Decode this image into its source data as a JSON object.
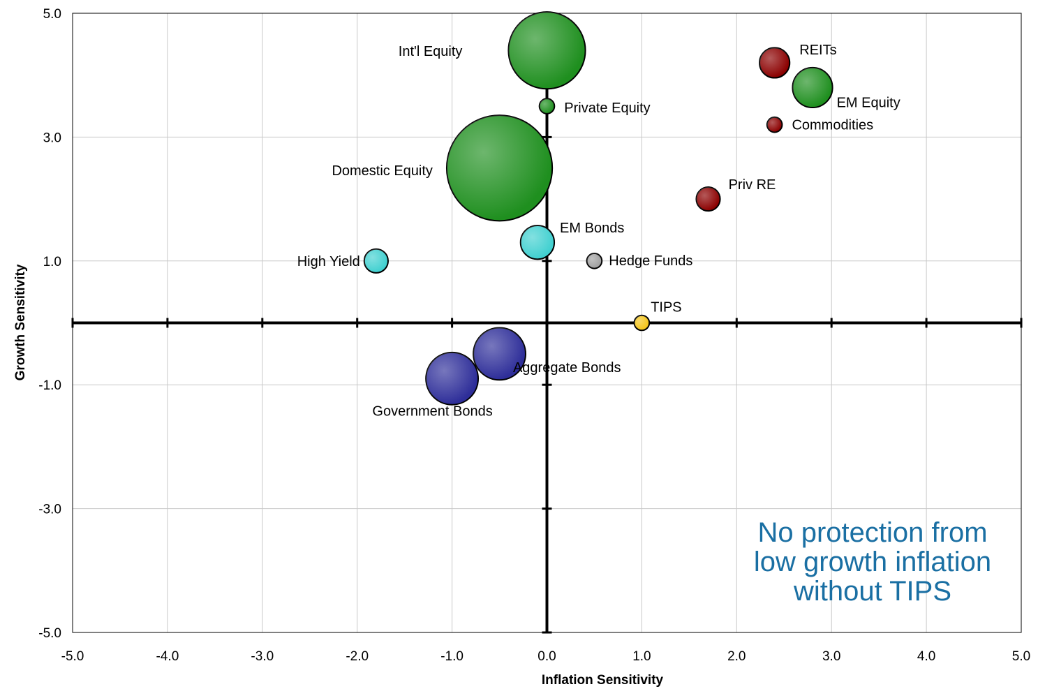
{
  "chart_data": {
    "type": "scatter",
    "subtype": "bubble",
    "title": "",
    "xlabel": "Inflation Sensitivity",
    "ylabel": "Growth Sensitivity",
    "xlim": [
      -5.0,
      5.0
    ],
    "ylim": [
      -5.0,
      5.0
    ],
    "x_ticks": [
      "-5.0",
      "-4.0",
      "-3.0",
      "-2.0",
      "-1.0",
      "0.0",
      "1.0",
      "2.0",
      "3.0",
      "4.0",
      "5.0"
    ],
    "y_ticks": [
      "5.0",
      "3.0",
      "1.0",
      "-1.0",
      "-3.0",
      "-5.0"
    ],
    "grid": true,
    "points": [
      {
        "label": "Int'l Equity",
        "x": 0.0,
        "y": 4.4,
        "size": 26,
        "color": "#1f8f1f"
      },
      {
        "label": "Private Equity",
        "x": 0.0,
        "y": 3.5,
        "size": 1,
        "color": "#1f8f1f"
      },
      {
        "label": "REITs",
        "x": 2.4,
        "y": 4.2,
        "size": 4,
        "color": "#8b0000"
      },
      {
        "label": "EM Equity",
        "x": 2.8,
        "y": 3.8,
        "size": 7,
        "color": "#1f8f1f"
      },
      {
        "label": "Commodities",
        "x": 2.4,
        "y": 3.2,
        "size": 1,
        "color": "#8b0000"
      },
      {
        "label": "Domestic Equity",
        "x": -0.5,
        "y": 2.5,
        "size": 49,
        "color": "#1f8f1f"
      },
      {
        "label": "Priv RE",
        "x": 1.7,
        "y": 2.0,
        "size": 2.5,
        "color": "#8b0000"
      },
      {
        "label": "EM Bonds",
        "x": -0.1,
        "y": 1.3,
        "size": 5,
        "color": "#40d0d0"
      },
      {
        "label": "High Yield",
        "x": -1.8,
        "y": 1.0,
        "size": 2.5,
        "color": "#40d0d0"
      },
      {
        "label": "Hedge Funds",
        "x": 0.5,
        "y": 1.0,
        "size": 1,
        "color": "#a0a0a0"
      },
      {
        "label": "TIPS",
        "x": 1.0,
        "y": 0.0,
        "size": 1,
        "color": "#f5c518"
      },
      {
        "label": "Aggregate Bonds",
        "x": -0.5,
        "y": -0.5,
        "size": 12,
        "color": "#2e2e99"
      },
      {
        "label": "Government Bonds",
        "x": -1.0,
        "y": -0.9,
        "size": 12,
        "color": "#2e2e99"
      }
    ]
  },
  "annotation": {
    "lines": [
      "No protection from",
      "low growth inflation",
      "without TIPS"
    ],
    "color": "#1a6fa3"
  }
}
